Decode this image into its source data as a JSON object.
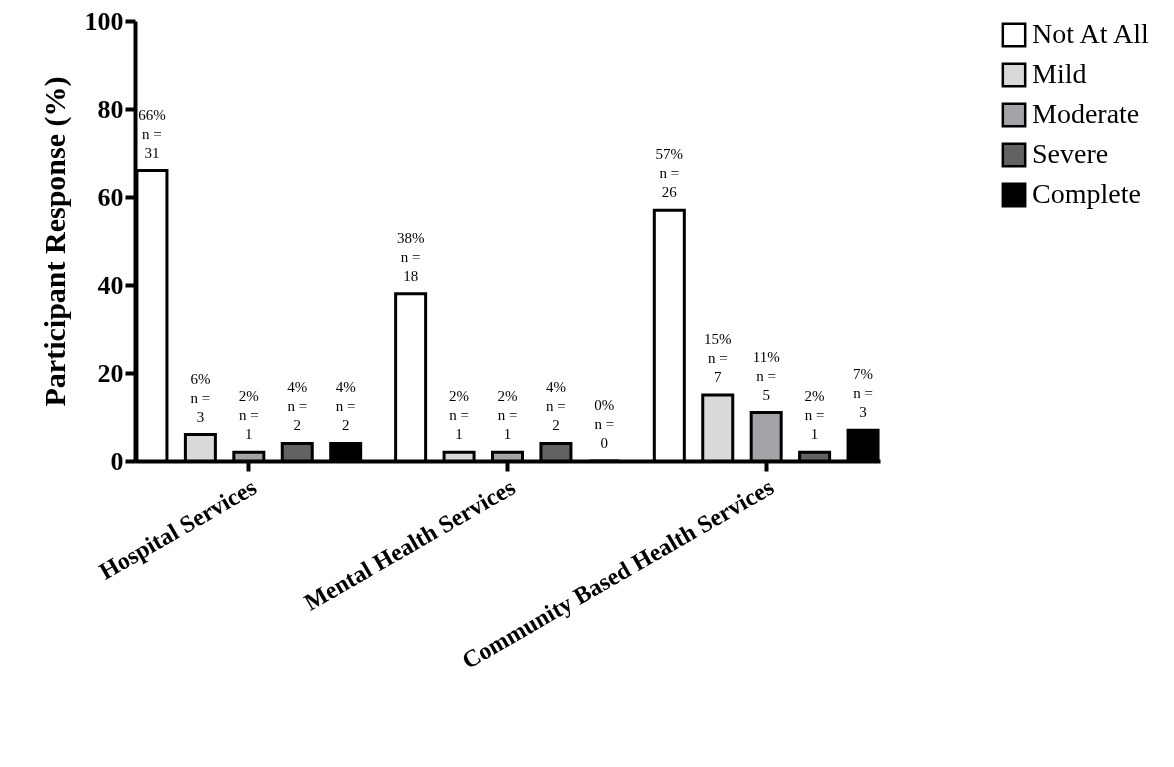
{
  "chart_data": {
    "type": "bar",
    "ylabel": "Participant Response (%)",
    "categories": [
      "Hospital Services",
      "Mental Health Services",
      "Community Based Health Services"
    ],
    "series": [
      {
        "name": "Not At All",
        "color": "#ffffff",
        "values": [
          66,
          38,
          57
        ],
        "value_labels": [
          "66%\nn =\n31",
          "38%\nn =\n18",
          "57%\nn =\n26"
        ]
      },
      {
        "name": "Mild",
        "color": "#d9d9d9",
        "values": [
          6,
          2,
          15
        ],
        "value_labels": [
          "6%\nn =\n3",
          "2%\nn =\n1",
          "15%\nn =\n7"
        ]
      },
      {
        "name": "Moderate",
        "color": "#a3a3a8",
        "values": [
          2,
          2,
          11
        ],
        "value_labels": [
          "2%\nn =\n1",
          "2%\nn =\n1",
          "11%\nn =\n5"
        ]
      },
      {
        "name": "Severe",
        "color": "#626262",
        "values": [
          4,
          4,
          2
        ],
        "value_labels": [
          "4%\nn =\n2",
          "4%\nn =\n2",
          "2%\nn =\n1"
        ]
      },
      {
        "name": "Complete",
        "color": "#000000",
        "values": [
          4,
          0,
          7
        ],
        "value_labels": [
          "4%\nn =\n2",
          "0%\nn =\n0",
          "7%\nn =\n3"
        ]
      }
    ],
    "ylim": [
      0,
      100
    ],
    "yticks": [
      0,
      20,
      40,
      60,
      80,
      100
    ],
    "grid": false,
    "legend": "top right"
  }
}
